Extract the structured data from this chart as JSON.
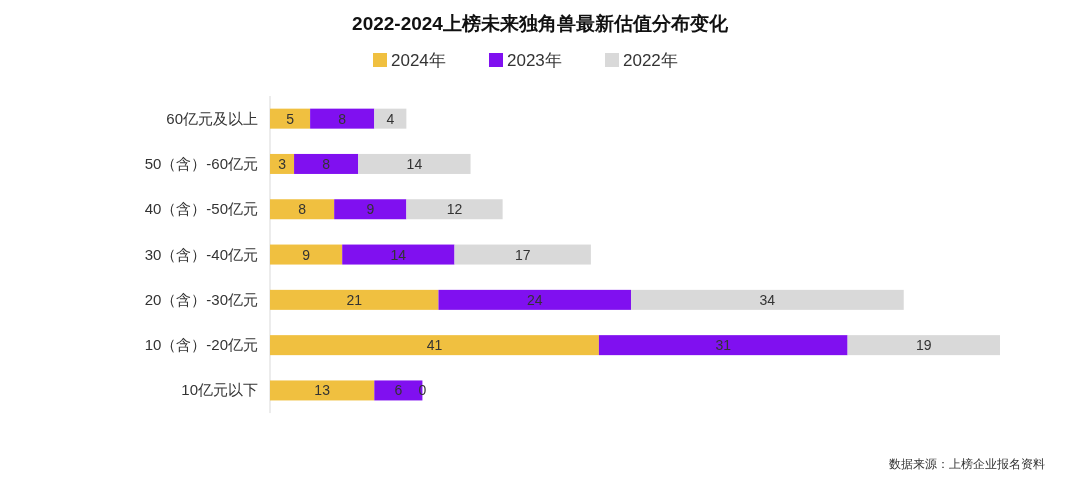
{
  "chart_data": {
    "type": "bar",
    "orientation": "horizontal",
    "stacked": true,
    "title": "2022-2024上榜未来独角兽最新估值分布变化",
    "categories": [
      "60亿元及以上",
      "50（含）-60亿元",
      "40（含）-50亿元",
      "30（含）-40亿元",
      "20（含）-30亿元",
      "10（含）-20亿元",
      "10亿元以下"
    ],
    "series": [
      {
        "name": "2024年",
        "color": "#f0c040",
        "values": [
          5,
          3,
          8,
          9,
          21,
          41,
          13
        ]
      },
      {
        "name": "2023年",
        "color": "#8010f0",
        "values": [
          8,
          8,
          9,
          14,
          24,
          31,
          6
        ]
      },
      {
        "name": "2022年",
        "color": "#d9d9d9",
        "values": [
          4,
          14,
          12,
          17,
          34,
          19,
          0
        ]
      }
    ],
    "data_labels": true,
    "legend": "top",
    "grid": false,
    "annotations": [
      "数据来源：上榜企业报名资料"
    ]
  }
}
